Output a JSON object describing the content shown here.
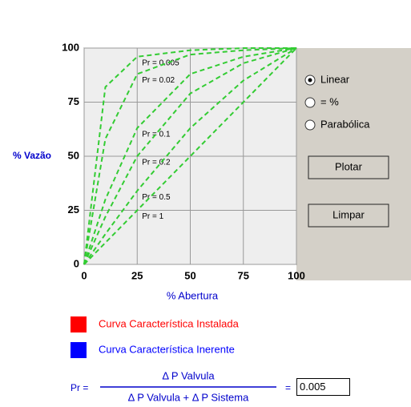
{
  "chart_data": {
    "type": "line",
    "x_label": "% Abertura",
    "y_label": "% Vazão",
    "x": [
      0,
      10,
      25,
      50,
      75,
      100
    ],
    "series": [
      {
        "name": "Pr = 0.005",
        "color": "#33cc33",
        "values": [
          0,
          82,
          96,
          99,
          100,
          100
        ]
      },
      {
        "name": "Pr = 0.02",
        "color": "#33cc33",
        "values": [
          0,
          58,
          88,
          97,
          99,
          100
        ]
      },
      {
        "name": "Pr = 0.1",
        "color": "#33cc33",
        "values": [
          0,
          30,
          63,
          88,
          96,
          100
        ]
      },
      {
        "name": "Pr = 0.2",
        "color": "#33cc33",
        "values": [
          0,
          22,
          50,
          79,
          93,
          100
        ]
      },
      {
        "name": "Pr = 0.5",
        "color": "#33cc33",
        "values": [
          0,
          14,
          34,
          63,
          85,
          100
        ]
      },
      {
        "name": "Pr = 1",
        "color": "#33cc33",
        "values": [
          0,
          10,
          25,
          50,
          75,
          100
        ]
      }
    ],
    "xlim": [
      0,
      100
    ],
    "ylim": [
      0,
      100
    ],
    "xticks": [
      0,
      25,
      50,
      75,
      100
    ],
    "yticks": [
      0,
      25,
      50,
      75,
      100
    ],
    "grid": true
  },
  "controls": {
    "options": [
      "Linear",
      "= %",
      "Parabólica"
    ],
    "buttons": [
      "Plotar",
      "Limpar"
    ],
    "legend": [
      {
        "label": "Curva Característica Instalada",
        "color": "#ff0000"
      },
      {
        "label": "Curva Característica Inerente",
        "color": "#0000ff"
      }
    ],
    "formula": {
      "lhs": "Pr =",
      "numerator": "Δ P Valvula",
      "denominator": "Δ P Valvula +  Δ P Sistema",
      "equals": "=",
      "input": "0.005"
    }
  }
}
